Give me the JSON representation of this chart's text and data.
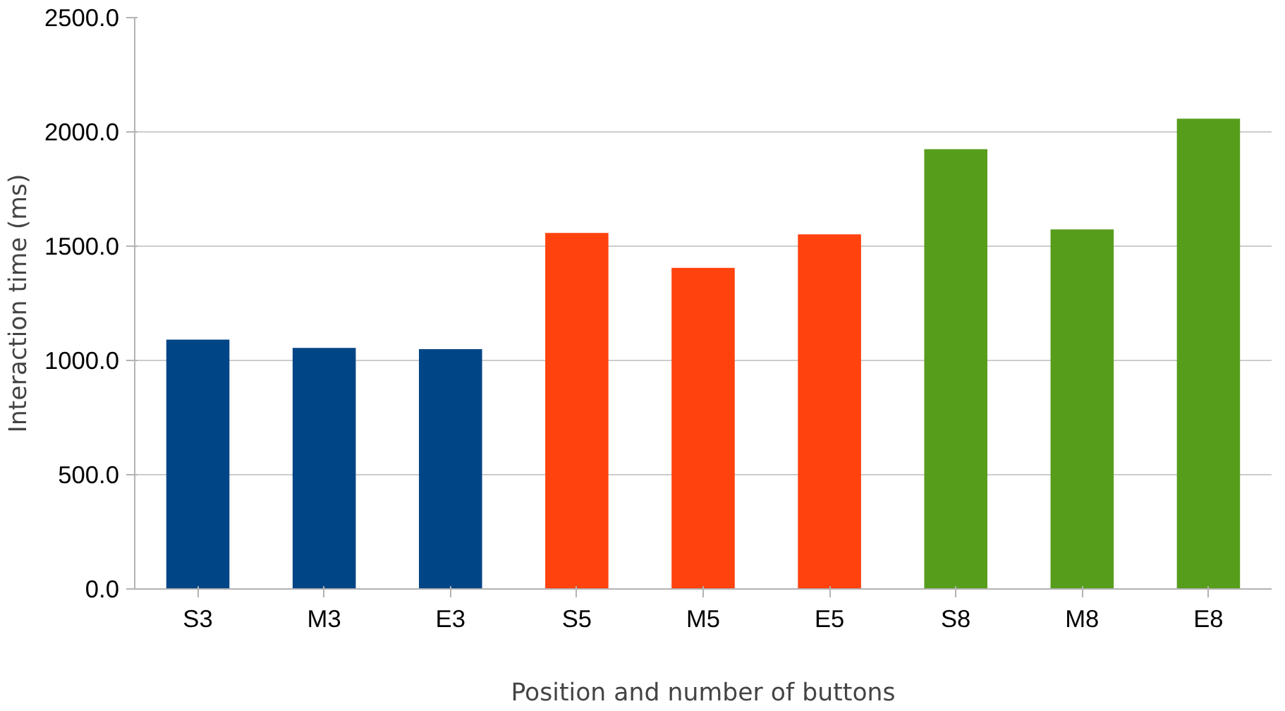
{
  "chart_data": {
    "type": "bar",
    "xlabel": "Position and number of buttons",
    "ylabel": "Interaction time (ms)",
    "categories": [
      "S3",
      "M3",
      "E3",
      "S5",
      "M5",
      "E5",
      "S8",
      "M8",
      "E8"
    ],
    "values": [
      1091,
      1055,
      1049,
      1558,
      1405,
      1552,
      1924,
      1573,
      2058
    ],
    "colors": [
      "#004586",
      "#004586",
      "#004586",
      "#ff420e",
      "#ff420e",
      "#ff420e",
      "#579d1c",
      "#579d1c",
      "#579d1c"
    ],
    "ylim": [
      0,
      2500
    ],
    "yticks": [
      {
        "value": 0,
        "label": "0.0"
      },
      {
        "value": 500,
        "label": "500.0"
      },
      {
        "value": 1000,
        "label": "1000.0"
      },
      {
        "value": 1500,
        "label": "1500.0"
      },
      {
        "value": 2000,
        "label": "2000.0"
      },
      {
        "value": 2500,
        "label": "2500.0"
      }
    ],
    "grid": "y"
  }
}
